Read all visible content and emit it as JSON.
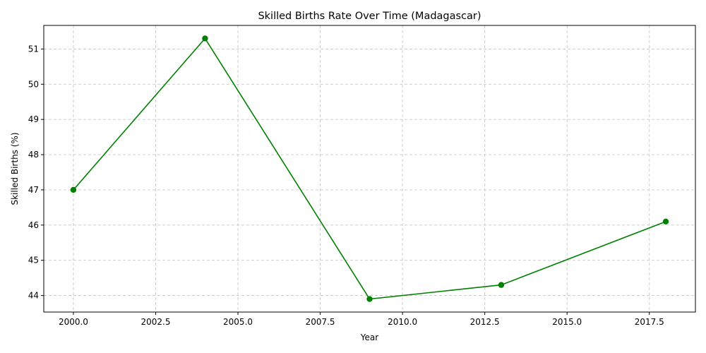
{
  "chart_data": {
    "type": "line",
    "title": "Skilled Births Rate Over Time (Madagascar)",
    "xlabel": "Year",
    "ylabel": "Skilled Births (%)",
    "x": [
      2000,
      2004,
      2009,
      2013,
      2018
    ],
    "series": [
      {
        "values": [
          47.0,
          51.3,
          43.9,
          44.3,
          46.1
        ],
        "color": "#008000",
        "marker": "circle"
      }
    ],
    "xlim": [
      1999.1,
      2018.9
    ],
    "ylim": [
      43.53,
      51.67
    ],
    "xticks": [
      2000,
      2002.5,
      2005,
      2007.5,
      2010,
      2012.5,
      2015,
      2017.5
    ],
    "xtick_labels": [
      "2000.0",
      "2002.5",
      "2005.0",
      "2007.5",
      "2010.0",
      "2012.5",
      "2015.0",
      "2017.5"
    ],
    "yticks": [
      44,
      45,
      46,
      47,
      48,
      49,
      50,
      51
    ],
    "ytick_labels": [
      "44",
      "45",
      "46",
      "47",
      "48",
      "49",
      "50",
      "51"
    ],
    "grid": true
  }
}
